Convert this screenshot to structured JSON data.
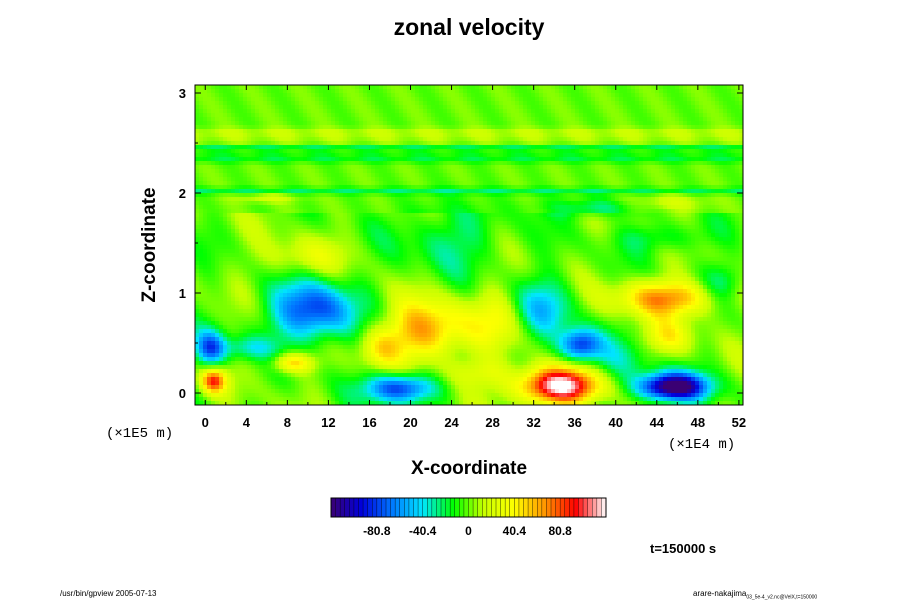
{
  "chart_data": {
    "type": "heatmap",
    "title": "zonal velocity",
    "xlabel": "X-coordinate",
    "ylabel": "Z-coordinate",
    "x_scale_label": "(×1E4 m)",
    "y_scale_label": "(×1E5 m)",
    "x_ticks": [
      "0",
      "4",
      "8",
      "12",
      "16",
      "20",
      "24",
      "28",
      "32",
      "36",
      "40",
      "44",
      "48",
      "52"
    ],
    "y_ticks": [
      "0",
      "1",
      "2",
      "3"
    ],
    "xlim": [
      -1,
      52.4
    ],
    "ylim": [
      -0.12,
      3.08
    ],
    "colorbar": {
      "ticks": [
        "-80.8",
        "-40.4",
        "0",
        "40.4",
        "80.8"
      ],
      "range": [
        -121.2,
        121.2
      ],
      "colors": [
        "#3a0073",
        "#0000dc",
        "#0078ff",
        "#00e6ff",
        "#00ff00",
        "#c8ff00",
        "#ffff00",
        "#ff9600",
        "#ff0000",
        "#ffffff"
      ]
    },
    "features": [
      {
        "x": 10.5,
        "z": 0.82,
        "rx": 4.0,
        "rz": 0.3,
        "value": -82
      },
      {
        "x": 4.0,
        "z": 0.45,
        "rx": 3.0,
        "rz": 0.12,
        "value": -30
      },
      {
        "x": 0.5,
        "z": 0.45,
        "rx": 1.5,
        "rz": 0.18,
        "value": -70
      },
      {
        "x": 21.5,
        "z": 0.62,
        "rx": 4.0,
        "rz": 0.3,
        "value": 65
      },
      {
        "x": 17.0,
        "z": 0.45,
        "rx": 2.0,
        "rz": 0.2,
        "value": 35
      },
      {
        "x": 28.5,
        "z": 0.75,
        "rx": 3.0,
        "rz": 0.3,
        "value": 30
      },
      {
        "x": 33.0,
        "z": 0.85,
        "rx": 3.0,
        "rz": 0.3,
        "value": -45
      },
      {
        "x": 36.5,
        "z": 0.48,
        "rx": 2.0,
        "rz": 0.16,
        "value": -80
      },
      {
        "x": 45.0,
        "z": 0.95,
        "rx": 5.0,
        "rz": 0.18,
        "value": 68
      },
      {
        "x": 45.0,
        "z": 0.55,
        "rx": 2.5,
        "rz": 0.18,
        "value": 35
      },
      {
        "x": 40.0,
        "z": 0.3,
        "rx": 3.5,
        "rz": 0.25,
        "value": -25
      },
      {
        "x": 19.0,
        "z": 0.05,
        "rx": 3.3,
        "rz": 0.15,
        "value": -88
      },
      {
        "x": 34.5,
        "z": 0.07,
        "rx": 4.0,
        "rz": 0.18,
        "value": 125
      },
      {
        "x": 45.5,
        "z": 0.06,
        "rx": 3.3,
        "rz": 0.14,
        "value": -135
      },
      {
        "x": 8.5,
        "z": 0.3,
        "rx": 2.0,
        "rz": 0.1,
        "value": 55
      },
      {
        "x": 0.8,
        "z": 0.12,
        "rx": 1.2,
        "rz": 0.12,
        "value": 80
      },
      {
        "x": 26.5,
        "z": 0.2,
        "rx": 3.5,
        "rz": 0.15,
        "value": 25
      },
      {
        "x": 24.0,
        "z": 1.55,
        "rx": 5.0,
        "rz": 0.35,
        "value": -25
      },
      {
        "x": 9.5,
        "z": 1.35,
        "rx": 4.0,
        "rz": 0.2,
        "value": 25
      },
      {
        "x": 50.5,
        "z": 1.1,
        "rx": 2.0,
        "rz": 0.2,
        "value": -30
      },
      {
        "x": 44.5,
        "z": 1.55,
        "rx": 4.0,
        "rz": 0.15,
        "value": -25
      },
      {
        "x": 6.0,
        "z": 1.95,
        "rx": 3.0,
        "rz": 0.05,
        "value": 20
      },
      {
        "x": 38.0,
        "z": 1.85,
        "rx": 5.0,
        "rz": 0.1,
        "value": -25
      },
      {
        "x": 45.0,
        "z": 1.9,
        "rx": 4.0,
        "rz": 0.1,
        "value": 20
      }
    ],
    "bands": [
      {
        "z": 2.02,
        "width": 0.035,
        "value": -22
      },
      {
        "z": 2.35,
        "width": 0.05,
        "value": -18
      },
      {
        "z": 2.45,
        "width": 0.03,
        "value": -22
      },
      {
        "z": 2.6,
        "width": 0.05,
        "value": 14
      },
      {
        "z": 2.52,
        "width": 0.02,
        "value": 16
      }
    ]
  },
  "time_label": "t=150000 s",
  "footer_left": "/usr/bin/gpview 2005-07-13",
  "footer_right_main": "arare-nakajima",
  "footer_right_sub": "03_5e-4_v2.nc@VelX,t=150000"
}
